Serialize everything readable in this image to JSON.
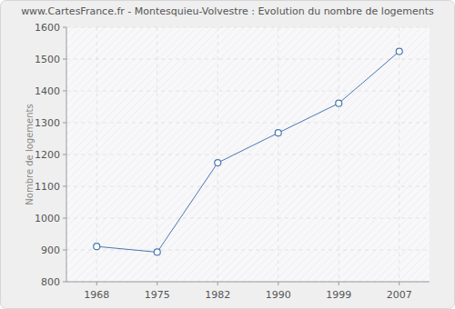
{
  "chart_data": {
    "type": "line",
    "title": "www.CartesFrance.fr - Montesquieu-Volvestre : Evolution du nombre de logements",
    "y_label": "Nombre de logements",
    "categories": [
      "1968",
      "1975",
      "1982",
      "1990",
      "1999",
      "2007"
    ],
    "values": [
      911,
      893,
      1174,
      1268,
      1361,
      1524
    ],
    "color": "#4a78b0",
    "marker": "circle",
    "ylim": [
      800,
      1600
    ],
    "yticks": [
      800,
      900,
      1000,
      1100,
      1200,
      1300,
      1400,
      1500,
      1600
    ],
    "grid": true
  }
}
